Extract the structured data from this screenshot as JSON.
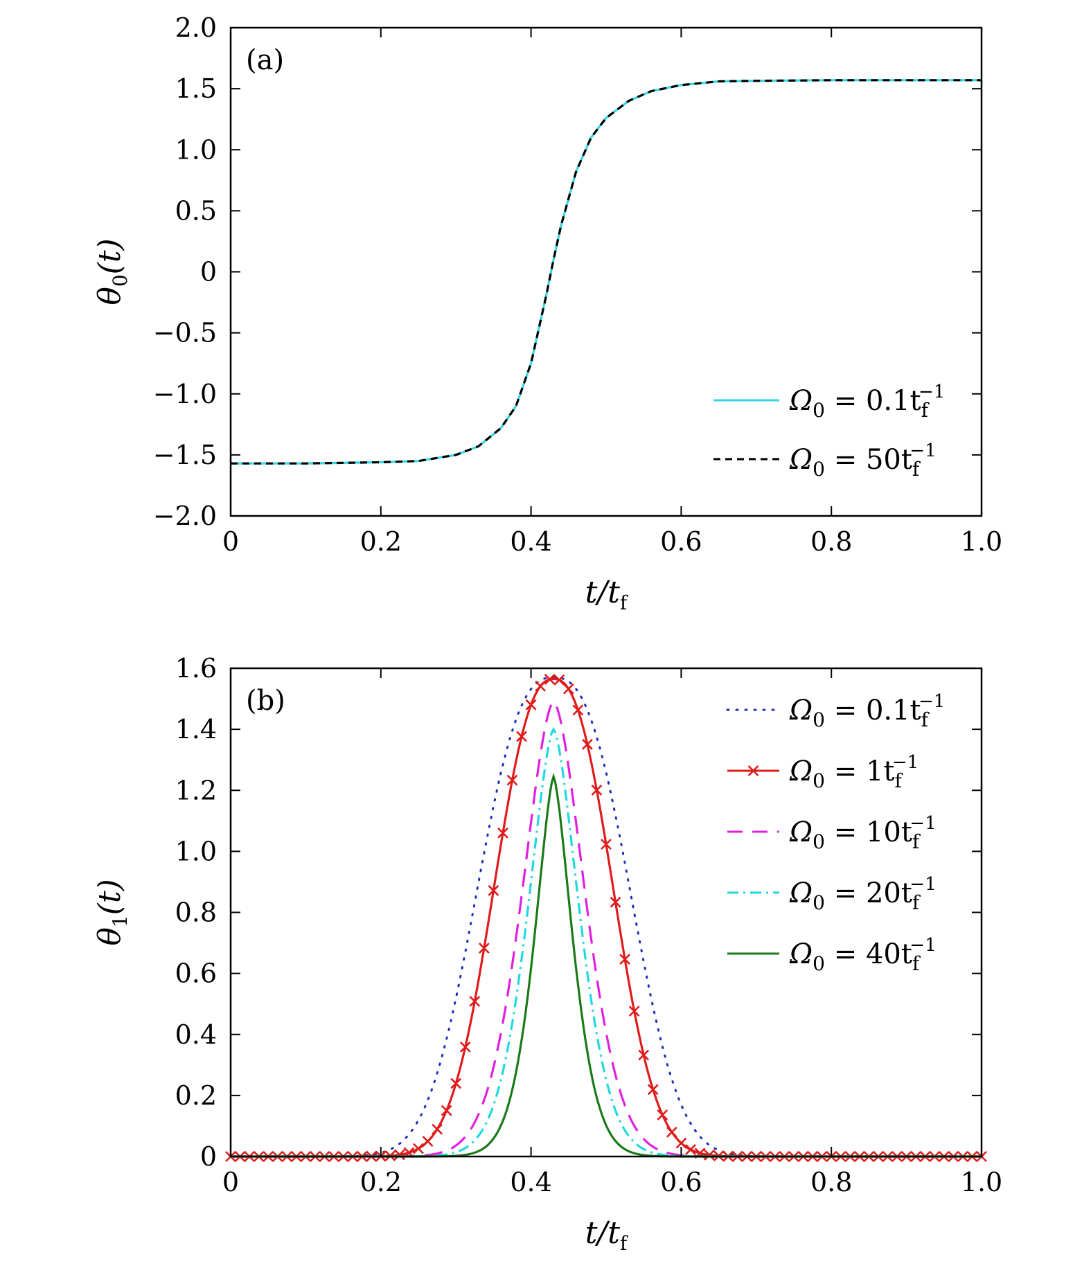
{
  "chart_data": [
    {
      "type": "line",
      "panel_label": "(a)",
      "xlabel": {
        "main": "t/t",
        "sub": "f"
      },
      "ylabel": {
        "main": "θ",
        "sub": "0",
        "tail": "(t)"
      },
      "xlim": [
        0,
        1.0
      ],
      "ylim": [
        -2.0,
        2.0
      ],
      "xticks": [
        "0",
        "0.2",
        "0.4",
        "0.6",
        "0.8",
        "1.0"
      ],
      "yticks": [
        "−2.0",
        "−1.5",
        "−1.0",
        "−0.5",
        "0",
        "0.5",
        "1.0",
        "1.5",
        "2.0"
      ],
      "legend_position": "lower-right",
      "grid": false,
      "series": [
        {
          "name": {
            "pre": "Ω",
            "sub0": "0",
            "value": " = 0.1t",
            "subf": "f",
            "sup": "−1"
          },
          "color": "#33d6e6",
          "style": "solid",
          "x": [
            0,
            0.1,
            0.2,
            0.25,
            0.3,
            0.33,
            0.36,
            0.38,
            0.4,
            0.42,
            0.43,
            0.44,
            0.46,
            0.48,
            0.5,
            0.53,
            0.56,
            0.6,
            0.65,
            0.7,
            0.8,
            0.9,
            1.0
          ],
          "y": [
            -1.57,
            -1.57,
            -1.56,
            -1.55,
            -1.5,
            -1.43,
            -1.28,
            -1.1,
            -0.75,
            -0.2,
            0.1,
            0.38,
            0.82,
            1.1,
            1.26,
            1.4,
            1.48,
            1.53,
            1.56,
            1.565,
            1.57,
            1.57,
            1.57
          ]
        },
        {
          "name": {
            "pre": "Ω",
            "sub0": "0",
            "value": " = 50t",
            "subf": "f",
            "sup": "−1"
          },
          "color": "#000000",
          "style": "dashed",
          "x": [
            0,
            0.1,
            0.2,
            0.25,
            0.3,
            0.33,
            0.36,
            0.38,
            0.4,
            0.42,
            0.43,
            0.44,
            0.46,
            0.48,
            0.5,
            0.53,
            0.56,
            0.6,
            0.65,
            0.7,
            0.8,
            0.9,
            1.0
          ],
          "y": [
            -1.57,
            -1.57,
            -1.56,
            -1.55,
            -1.5,
            -1.43,
            -1.28,
            -1.1,
            -0.75,
            -0.2,
            0.1,
            0.38,
            0.82,
            1.1,
            1.26,
            1.4,
            1.48,
            1.53,
            1.56,
            1.565,
            1.57,
            1.57,
            1.57
          ]
        }
      ]
    },
    {
      "type": "line",
      "panel_label": "(b)",
      "xlabel": {
        "main": "t/t",
        "sub": "f"
      },
      "ylabel": {
        "main": "θ",
        "sub": "1",
        "tail": "(t)"
      },
      "xlim": [
        0,
        1.0
      ],
      "ylim": [
        0,
        1.6
      ],
      "xticks": [
        "0",
        "0.2",
        "0.4",
        "0.6",
        "0.8",
        "1.0"
      ],
      "yticks": [
        "0",
        "0.2",
        "0.4",
        "0.6",
        "0.8",
        "1.0",
        "1.2",
        "1.4",
        "1.6"
      ],
      "legend_position": "top-right",
      "grid": false,
      "series": [
        {
          "name": {
            "pre": "Ω",
            "sub0": "0",
            "value": " = 0.1t",
            "subf": "f",
            "sup": "−1"
          },
          "color": "#1f2fb8",
          "style": "dotted",
          "peak": 1.57,
          "center": 0.43,
          "width": 0.125,
          "exponent": 2.6
        },
        {
          "name": {
            "pre": "Ω",
            "sub0": "0",
            "value": " = 1t",
            "subf": "f",
            "sup": "−1"
          },
          "color": "#e01b1b",
          "style": "solid-x",
          "peak": 1.565,
          "center": 0.43,
          "width": 0.1,
          "exponent": 2.4
        },
        {
          "name": {
            "pre": "Ω",
            "sub0": "0",
            "value": " = 10t",
            "subf": "f",
            "sup": "−1"
          },
          "color": "#e020e0",
          "style": "longdash",
          "peak": 1.49,
          "center": 0.43,
          "width": 0.06,
          "exponent": 1.7
        },
        {
          "name": {
            "pre": "Ω",
            "sub0": "0",
            "value": " = 20t",
            "subf": "f",
            "sup": "−1"
          },
          "color": "#22d8e0",
          "style": "dashdot",
          "peak": 1.4,
          "center": 0.43,
          "width": 0.05,
          "exponent": 1.6
        },
        {
          "name": {
            "pre": "Ω",
            "sub0": "0",
            "value": " = 40t",
            "subf": "f",
            "sup": "−1"
          },
          "color": "#1a7a1a",
          "style": "solid",
          "peak": 1.245,
          "center": 0.43,
          "width": 0.038,
          "exponent": 1.5
        }
      ]
    }
  ]
}
